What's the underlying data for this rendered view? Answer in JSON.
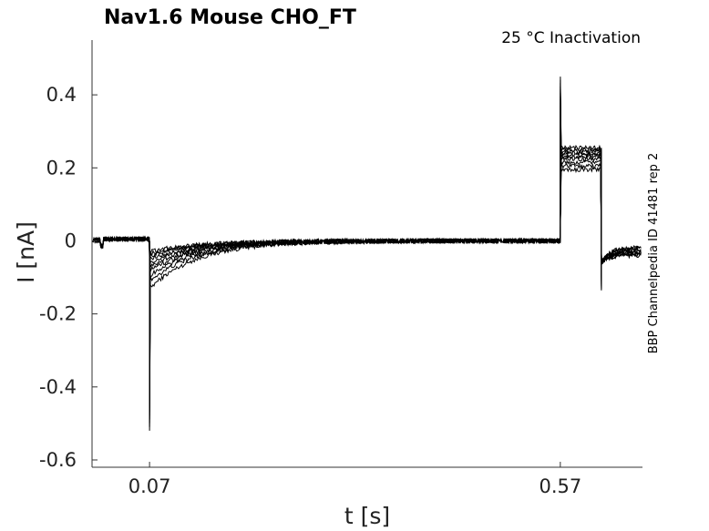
{
  "chart_data": {
    "type": "line",
    "title": "Nav1.6  Mouse  CHO_FT",
    "subtitle": "25 °C  Inactivation",
    "side_label": "BBP Channelpedia ID 41481 rep 2",
    "xlabel": "t [s]",
    "ylabel": "I [nA]",
    "xlim": [
      0.0,
      0.67
    ],
    "ylim": [
      -0.62,
      0.55
    ],
    "xticks": [
      0.07,
      0.57
    ],
    "xtick_labels": [
      "0.07",
      "0.57"
    ],
    "yticks": [
      0.4,
      0.2,
      0.0,
      -0.2,
      -0.4,
      -0.6
    ],
    "ytick_labels": [
      "0.4",
      "0.2",
      "0",
      "-0.2",
      "-0.4",
      "-0.6"
    ],
    "grid": false,
    "line_color": "#000000",
    "num_traces": 10,
    "trace_shape": {
      "prepulse_start": 0.07,
      "test_pulse_start": 0.57,
      "test_pulse_end": 0.62,
      "pre_step": {
        "x": 0.01,
        "value": -0.03
      },
      "prepulse_peak_min": -0.52,
      "prepulse_decay_starts": [
        -0.13,
        -0.11,
        -0.095,
        -0.08,
        -0.07,
        -0.06,
        -0.05,
        -0.04,
        -0.035,
        -0.03
      ],
      "prepulse_decay_tau": 0.06,
      "test_spike_peak": 0.45,
      "test_plateau_values": [
        0.255,
        0.25,
        0.245,
        0.24,
        0.235,
        0.23,
        0.225,
        0.215,
        0.205,
        0.195
      ],
      "tail_min": -0.14,
      "tail_values": [
        -0.04,
        -0.038,
        -0.035,
        -0.033,
        -0.03,
        -0.028,
        -0.025,
        -0.022,
        -0.02,
        -0.018
      ]
    }
  }
}
